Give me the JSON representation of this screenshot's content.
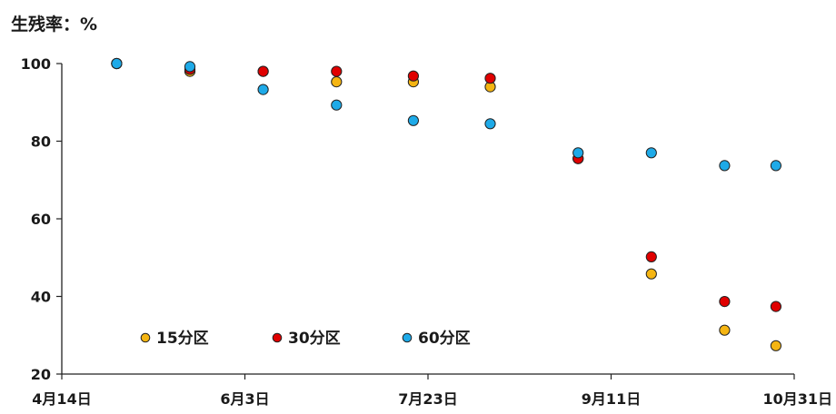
{
  "chart_data": {
    "type": "scatter",
    "title": "",
    "ylabel": "生残率：%",
    "xlabel": "",
    "y_ticks": [
      "20",
      "40",
      "60",
      "80",
      "100"
    ],
    "x_ticks": [
      "4月14日",
      "6月3日",
      "7月23日",
      "9月11日",
      "10月31日"
    ],
    "x_tick_dates": [
      "04-14",
      "06-03",
      "07-23",
      "09-11",
      "10-31"
    ],
    "ylim": [
      20,
      100
    ],
    "xlim": [
      "04-14",
      "10-31"
    ],
    "grid": false,
    "legend": "bottom-left",
    "series": [
      {
        "name": "15分区",
        "color": "#F5B512",
        "points": [
          {
            "x": "04-29",
            "y": 100.0
          },
          {
            "x": "05-19",
            "y": 98.0
          },
          {
            "x": "06-08",
            "y": 98.0
          },
          {
            "x": "06-28",
            "y": 95.3
          },
          {
            "x": "07-19",
            "y": 95.3
          },
          {
            "x": "08-09",
            "y": 94.0
          },
          {
            "x": "09-02",
            "y": 75.5
          },
          {
            "x": "09-22",
            "y": 45.8
          },
          {
            "x": "10-12",
            "y": 31.3
          },
          {
            "x": "10-26",
            "y": 27.3
          }
        ]
      },
      {
        "name": "30分区",
        "color": "#E00000",
        "points": [
          {
            "x": "04-29",
            "y": 100.0
          },
          {
            "x": "05-19",
            "y": 98.5
          },
          {
            "x": "06-08",
            "y": 98.0
          },
          {
            "x": "06-28",
            "y": 98.0
          },
          {
            "x": "07-19",
            "y": 96.8
          },
          {
            "x": "08-09",
            "y": 96.2
          },
          {
            "x": "09-02",
            "y": 75.5
          },
          {
            "x": "09-22",
            "y": 50.2
          },
          {
            "x": "10-12",
            "y": 38.7
          },
          {
            "x": "10-26",
            "y": 37.4
          }
        ]
      },
      {
        "name": "60分区",
        "color": "#1EAAE8",
        "points": [
          {
            "x": "04-29",
            "y": 100.0
          },
          {
            "x": "05-19",
            "y": 99.2
          },
          {
            "x": "06-08",
            "y": 93.3
          },
          {
            "x": "06-28",
            "y": 89.3
          },
          {
            "x": "07-19",
            "y": 85.3
          },
          {
            "x": "08-09",
            "y": 84.5
          },
          {
            "x": "09-02",
            "y": 77.0
          },
          {
            "x": "09-22",
            "y": 77.0
          },
          {
            "x": "10-12",
            "y": 73.7
          },
          {
            "x": "10-26",
            "y": 73.7
          }
        ]
      }
    ]
  }
}
